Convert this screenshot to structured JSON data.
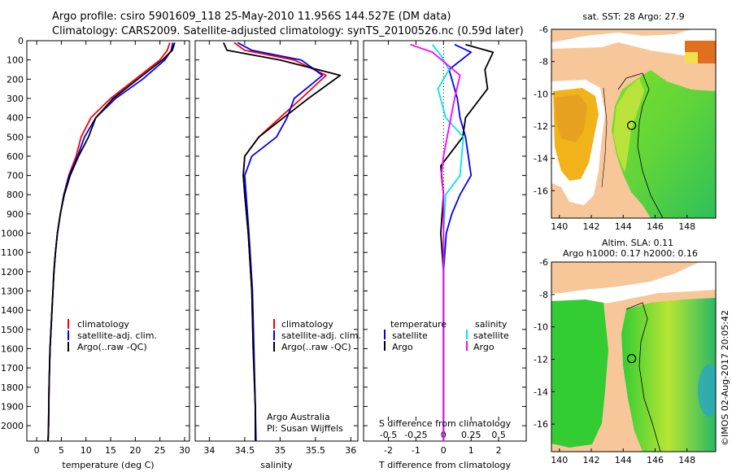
{
  "header": {
    "title_line1": "Argo profile: csiro 5901609_118 25-May-2010 11.956S 144.527E (DM data)",
    "title_line2": "Climatology: CARS2009. Satellite-adjusted climatology: synTS_20100526.nc (0.59d later)"
  },
  "colors": {
    "climatology": "#ff0000",
    "satellite": "#0000ff",
    "argo": "#000000",
    "argo_salinity": "#ff00ff",
    "sat_salinity": "#00e5ee",
    "land": "#f7c79a",
    "sea_green": "#33cc33"
  },
  "chart_data": [
    {
      "type": "line",
      "name": "temperature-profile",
      "xlabel": "temperature (deg C)",
      "ylabel": "",
      "xlim": [
        -2,
        31
      ],
      "ylim": [
        2080,
        0
      ],
      "xticks": [
        0,
        5,
        10,
        15,
        20,
        25,
        30
      ],
      "yticks": [
        0,
        100,
        200,
        300,
        400,
        500,
        600,
        700,
        800,
        900,
        1000,
        1100,
        1200,
        1300,
        1400,
        1500,
        1600,
        1700,
        1800,
        1900,
        2000
      ],
      "legend": [
        "climatology",
        "satellite-adj. clim.",
        "Argo(..raw -QC)"
      ],
      "series": [
        {
          "name": "climatology",
          "color": "#ff0000",
          "x": [
            27.0,
            26.5,
            25.0,
            20.0,
            15.0,
            11.0,
            9.0,
            8.0,
            6.5,
            5.5,
            4.8,
            4.2,
            3.8,
            3.5,
            3.3,
            3.1,
            2.9,
            2.7,
            2.5,
            2.4,
            2.3
          ],
          "depth": [
            10,
            50,
            100,
            200,
            300,
            400,
            500,
            600,
            700,
            800,
            900,
            1000,
            1100,
            1200,
            1300,
            1400,
            1500,
            1600,
            1800,
            2000,
            2080
          ]
        },
        {
          "name": "satellite",
          "color": "#0000ff",
          "x": [
            27.6,
            27.3,
            26.0,
            21.5,
            16.0,
            12.0,
            9.7,
            8.3,
            6.6,
            5.5,
            4.8,
            4.2,
            3.8,
            3.5,
            3.3,
            3.1,
            2.9,
            2.7,
            2.5,
            2.4,
            2.3
          ],
          "depth": [
            10,
            50,
            100,
            200,
            300,
            400,
            500,
            600,
            700,
            800,
            900,
            1000,
            1100,
            1200,
            1300,
            1400,
            1500,
            1600,
            1800,
            2000,
            2080
          ]
        },
        {
          "name": "argo",
          "color": "#000000",
          "x": [
            28.0,
            27.5,
            25.5,
            20.5,
            15.5,
            12.0,
            10.5,
            8.5,
            6.8,
            5.6,
            4.8,
            4.2,
            3.8,
            3.5,
            3.3,
            3.1,
            2.9,
            2.7,
            2.5,
            2.4,
            2.3
          ],
          "depth": [
            10,
            50,
            100,
            200,
            300,
            400,
            500,
            600,
            700,
            800,
            900,
            1000,
            1100,
            1200,
            1300,
            1400,
            1500,
            1600,
            1800,
            2000,
            2080
          ]
        }
      ]
    },
    {
      "type": "line",
      "name": "salinity-profile",
      "xlabel": "salinity",
      "xlim": [
        33.8,
        36.1
      ],
      "ylim": [
        2080,
        0
      ],
      "xticks": [
        34,
        34.5,
        35,
        35.5,
        36
      ],
      "legend": [
        "climatology",
        "satellite-adj. clim.",
        "Argo(..raw -QC)"
      ],
      "annotation": [
        "Argo Australia",
        "PI: Susan Wijffels"
      ],
      "series": [
        {
          "name": "climatology",
          "color": "#ff0000",
          "x": [
            34.35,
            34.5,
            35.2,
            35.65,
            35.3,
            35.0,
            34.7,
            34.5,
            34.48,
            34.5,
            34.55,
            34.6,
            34.62,
            34.65,
            34.65
          ],
          "depth": [
            10,
            50,
            100,
            180,
            300,
            400,
            500,
            600,
            700,
            800,
            1000,
            1300,
            1600,
            1900,
            2080
          ]
        },
        {
          "name": "satellite",
          "color": "#0000ff",
          "x": [
            34.4,
            34.6,
            35.3,
            35.6,
            35.2,
            35.1,
            34.95,
            34.6,
            34.5,
            34.52,
            34.56,
            34.61,
            34.63,
            34.65,
            34.66
          ],
          "depth": [
            10,
            50,
            100,
            180,
            300,
            400,
            500,
            600,
            700,
            800,
            1000,
            1300,
            1600,
            1900,
            2080
          ]
        },
        {
          "name": "argo",
          "color": "#000000",
          "x": [
            34.2,
            34.25,
            35.0,
            35.85,
            35.4,
            35.05,
            34.7,
            34.5,
            34.48,
            34.5,
            34.55,
            34.6,
            34.62,
            34.65,
            34.65
          ],
          "depth": [
            10,
            50,
            100,
            180,
            300,
            400,
            500,
            600,
            700,
            800,
            1000,
            1300,
            1600,
            1900,
            2080
          ]
        }
      ]
    },
    {
      "type": "line",
      "name": "difference-profile",
      "xlabel": "T difference from climatology",
      "xlabel_top": "S difference from climatology",
      "xlim": [
        -2.9,
        3.0
      ],
      "ylim": [
        2080,
        0
      ],
      "xticks": [
        -2,
        -1,
        0,
        1,
        2
      ],
      "top_tick_values": [
        -0.5,
        -0.25,
        0,
        0.25,
        0.5
      ],
      "top_tick_labels": [
        "-0.5",
        "-0.25",
        "0",
        "0.25",
        "0.5"
      ],
      "legend_headers": [
        "temperature",
        "salinity"
      ],
      "legend": [
        "satellite",
        "Argo",
        "satellite",
        "Argo"
      ],
      "series": [
        {
          "name": "T satellite",
          "color": "#0000ff",
          "x": [
            0.4,
            1.0,
            0.2,
            0.5,
            0.6,
            0.8,
            0.9,
            1.0,
            0.6,
            0.3,
            0.1,
            0.0,
            0.0,
            0.0
          ],
          "depth": [
            20,
            60,
            150,
            300,
            400,
            500,
            600,
            700,
            800,
            900,
            1000,
            1200,
            1500,
            2080
          ]
        },
        {
          "name": "T argo",
          "color": "#000000",
          "x": [
            0.8,
            1.8,
            1.5,
            1.6,
            0.8,
            0.7,
            -0.1,
            0.0,
            -0.1,
            0.0,
            0.0,
            0.0
          ],
          "depth": [
            20,
            60,
            150,
            250,
            400,
            500,
            650,
            800,
            1000,
            1200,
            1500,
            2080
          ]
        },
        {
          "name": "S satellite",
          "color": "#00e5ee",
          "x": [
            -0.1,
            -0.02,
            0.05,
            -0.05,
            0.02,
            0.18,
            0.15,
            0.02,
            0.0,
            0.0,
            0.0
          ],
          "depth": [
            20,
            80,
            150,
            250,
            400,
            500,
            700,
            800,
            1000,
            1500,
            2080
          ]
        },
        {
          "name": "S argo",
          "color": "#ff00ff",
          "x": [
            -0.3,
            -0.1,
            0.15,
            0.1,
            0.05,
            0.0,
            -0.02,
            0.0,
            0.0,
            0.0
          ],
          "depth": [
            20,
            60,
            180,
            300,
            450,
            600,
            700,
            800,
            1000,
            2080
          ]
        }
      ]
    },
    {
      "type": "heatmap",
      "name": "sst-map",
      "title": "sat. SST: 28 Argo: 27.9",
      "xlim": [
        139.5,
        149.8
      ],
      "ylim": [
        -17.7,
        -6
      ],
      "xticks": [
        140,
        142,
        144,
        146,
        148
      ],
      "yticks": [
        -6,
        -8,
        -10,
        -12,
        -14,
        -16
      ],
      "ytick_labels": [
        "-6",
        "-8",
        "-10",
        "-12",
        "-14",
        "-16"
      ],
      "marker": {
        "lon": 144.527,
        "lat": -11.956
      }
    },
    {
      "type": "heatmap",
      "name": "sla-map",
      "title_line1": "Altim. SLA: 0.11",
      "title_line2": "Argo h1000: 0.17 h2000: 0.16",
      "xlim": [
        139.5,
        149.8
      ],
      "ylim": [
        -17.7,
        -6
      ],
      "xticks": [
        140,
        142,
        144,
        146,
        148
      ],
      "yticks": [
        -6,
        -8,
        -10,
        -12,
        -14,
        -16
      ],
      "ytick_labels": [
        "-6",
        "-8",
        "-10",
        "-12",
        "-14",
        "-16"
      ],
      "marker": {
        "lon": 144.527,
        "lat": -11.956
      }
    }
  ],
  "credit": "©IMOS 02-Aug-2017 20:05:42"
}
